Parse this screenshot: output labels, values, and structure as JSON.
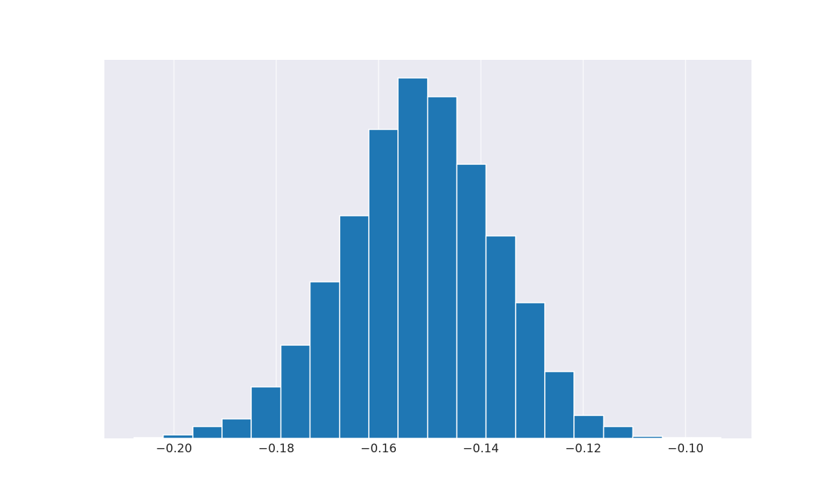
{
  "chart_data": {
    "type": "histogram",
    "bins": [
      -0.2078,
      -0.2021,
      -0.1963,
      -0.1906,
      -0.1849,
      -0.1791,
      -0.1734,
      -0.1676,
      -0.1619,
      -0.1562,
      -0.1504,
      -0.1447,
      -0.139,
      -0.1332,
      -0.1275,
      -0.1218,
      -0.116,
      -0.1103,
      -0.1045,
      -0.0988,
      -0.0931
    ],
    "values": [
      1,
      5,
      17,
      28,
      74,
      134,
      225,
      320,
      444,
      518,
      491,
      394,
      291,
      195,
      96,
      33,
      17,
      3,
      1,
      1
    ],
    "color": "#1f77b4",
    "xlim": [
      -0.2136,
      -0.0871
    ],
    "ylim": [
      0,
      544
    ],
    "xticks": [
      {
        "value": -0.2,
        "label": "−0.20"
      },
      {
        "value": -0.18,
        "label": "−0.18"
      },
      {
        "value": -0.16,
        "label": "−0.16"
      },
      {
        "value": -0.14,
        "label": "−0.14"
      },
      {
        "value": -0.12,
        "label": "−0.12"
      },
      {
        "value": -0.1,
        "label": "−0.10"
      }
    ],
    "grid": true
  }
}
